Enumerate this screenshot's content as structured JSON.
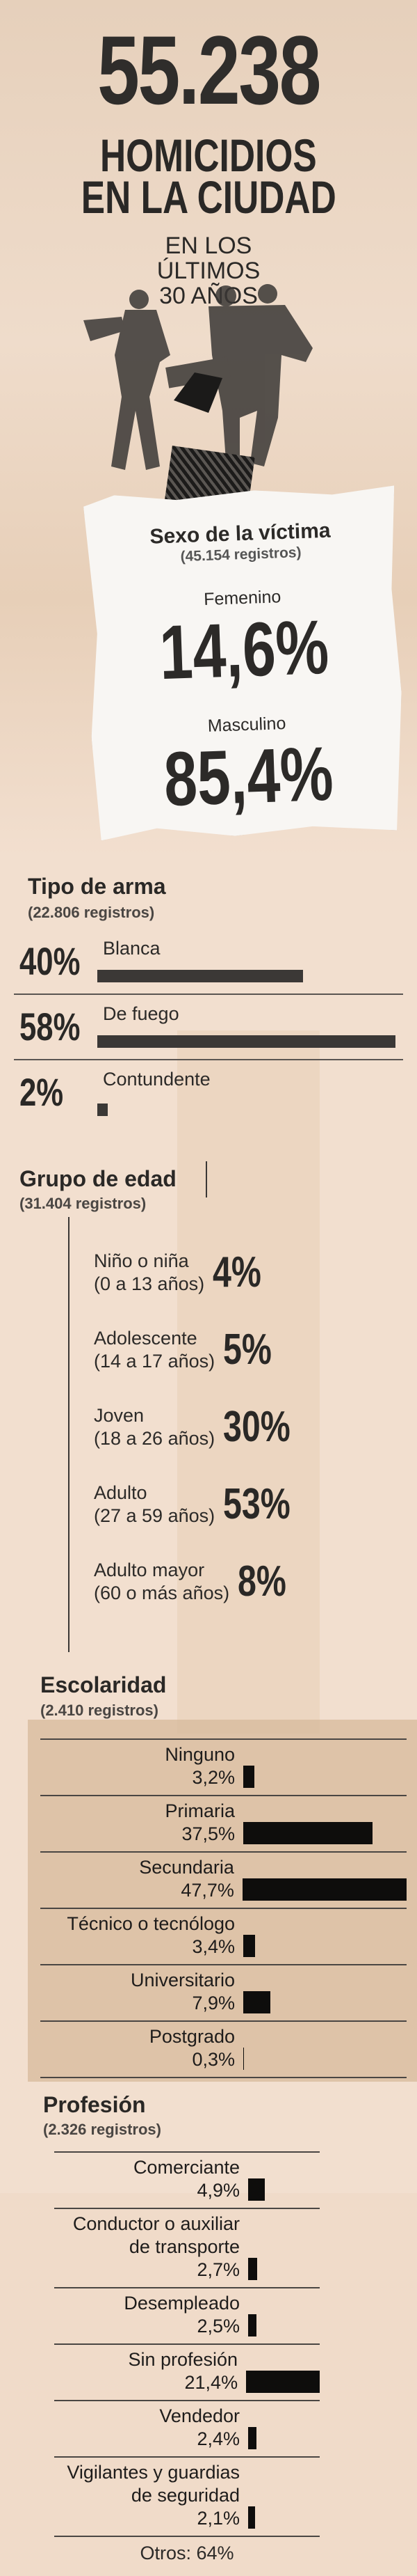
{
  "header": {
    "number": "55.238",
    "title": [
      "HOMICIDIOS",
      "EN LA CIUDAD"
    ],
    "subtitle": [
      "EN LOS",
      "ÚLTIMOS",
      "30 AÑOS"
    ]
  },
  "sex": {
    "title": "Sexo de la víctima",
    "records": "(45.154 registros)",
    "items": [
      {
        "label": "Femenino",
        "value": "14,6%"
      },
      {
        "label": "Masculino",
        "value": "85,4%"
      }
    ]
  },
  "age": {
    "title": "Grupo de edad",
    "records": "(31.404 registros)",
    "items": [
      {
        "label": "Niño o niña",
        "range": "(0 a 13 años)",
        "value": "4%"
      },
      {
        "label": "Adolescente",
        "range": "(14 a 17 años)",
        "value": "5%"
      },
      {
        "label": "Joven",
        "range": "(18 a 26 años)",
        "value": "30%"
      },
      {
        "label": "Adulto",
        "range": "(27 a 59 años)",
        "value": "53%"
      },
      {
        "label": "Adulto mayor",
        "range": "(60 o más años)",
        "value": "8%"
      }
    ]
  },
  "chart_data": [
    {
      "type": "bar",
      "title": "Tipo de arma",
      "subtitle": "(22.806 registros)",
      "categories": [
        "Blanca",
        "De fuego",
        "Contundente"
      ],
      "values": [
        40,
        58,
        2
      ],
      "value_labels": [
        "40%",
        "58%",
        "2%"
      ],
      "color": "#3b3836"
    },
    {
      "type": "bar",
      "title": "Escolaridad",
      "subtitle": "(2.410 registros)",
      "categories": [
        "Ninguno",
        "Primaria",
        "Secundaria",
        "Técnico o tecnólogo",
        "Universitario",
        "Postgrado"
      ],
      "values": [
        3.2,
        37.5,
        47.7,
        3.4,
        7.9,
        0.3
      ],
      "value_labels": [
        "3,2%",
        "37,5%",
        "47,7%",
        "3,4%",
        "7,9%",
        "0,3%"
      ],
      "color": "#0e0d0c"
    },
    {
      "type": "bar",
      "title": "Profesión",
      "subtitle": "(2.326 registros)",
      "categories": [
        "Comerciante",
        "Conductor o auxiliar de transporte",
        "Desempleado",
        "Sin profesión",
        "Vendedor",
        "Vigilantes y guardias de seguridad"
      ],
      "values": [
        4.9,
        2.7,
        2.5,
        21.4,
        2.4,
        2.1
      ],
      "value_labels": [
        "4,9%",
        "2,7%",
        "2,5%",
        "21,4%",
        "2,4%",
        "2,1%"
      ],
      "color": "#0e0d0c",
      "note": "Otros: 64%"
    }
  ]
}
